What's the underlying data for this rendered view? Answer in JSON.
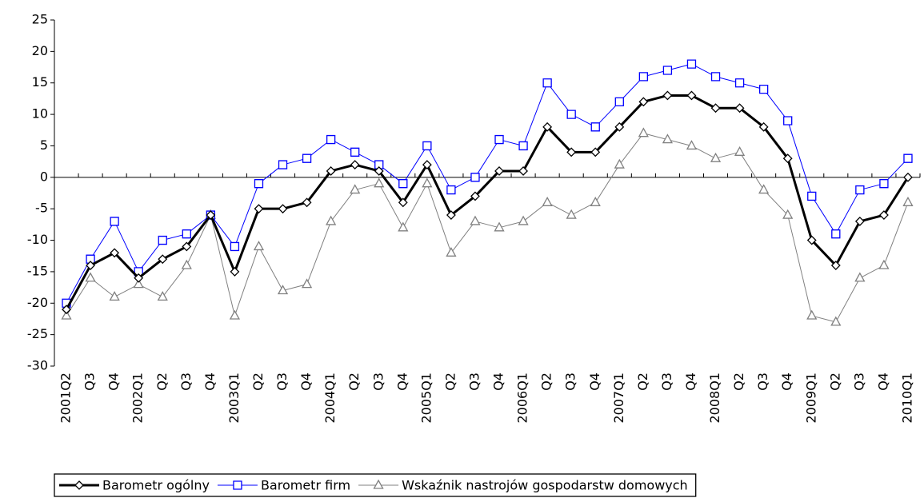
{
  "chart_data": {
    "type": "line",
    "categories": [
      "2001Q2",
      "Q3",
      "Q4",
      "2002Q1",
      "Q2",
      "Q3",
      "Q4",
      "2003Q1",
      "Q2",
      "Q3",
      "Q4",
      "2004Q1",
      "Q2",
      "Q3",
      "Q4",
      "2005Q1",
      "Q2",
      "Q3",
      "Q4",
      "2006Q1",
      "Q2",
      "Q3",
      "Q4",
      "2007Q1",
      "Q2",
      "Q3",
      "Q4",
      "2008Q1",
      "Q2",
      "Q3",
      "Q4",
      "2009Q1",
      "Q2",
      "Q3",
      "Q4",
      "2010Q1"
    ],
    "series": [
      {
        "name": "Barometr ogólny",
        "color": "#000000",
        "marker": "diamond",
        "line_width": 3,
        "values": [
          -21,
          -14,
          -12,
          -16,
          -13,
          -11,
          -6,
          -15,
          -5,
          -5,
          -4,
          1,
          2,
          1,
          -4,
          2,
          -6,
          -3,
          1,
          1,
          8,
          4,
          4,
          8,
          12,
          13,
          13,
          11,
          11,
          8,
          3,
          -10,
          -14,
          -7,
          -6,
          0
        ]
      },
      {
        "name": "Barometr firm",
        "color": "#0000ff",
        "marker": "square",
        "line_width": 1,
        "values": [
          -20,
          -13,
          -7,
          -15,
          -10,
          -9,
          -6,
          -11,
          -1,
          2,
          3,
          6,
          4,
          2,
          -1,
          5,
          -2,
          0,
          6,
          5,
          15,
          10,
          8,
          12,
          16,
          17,
          18,
          16,
          15,
          14,
          9,
          -3,
          -9,
          -2,
          -1,
          3
        ]
      },
      {
        "name": "Wskaźnik nastrojów gospodarstw domowych",
        "color": "#808080",
        "marker": "triangle",
        "line_width": 1,
        "values": [
          -22,
          -16,
          -19,
          -17,
          -19,
          -14,
          -6,
          -22,
          -11,
          -18,
          -17,
          -7,
          -2,
          -1,
          -8,
          -1,
          -12,
          -7,
          -8,
          -7,
          -4,
          -6,
          -4,
          2,
          7,
          6,
          5,
          3,
          4,
          -2,
          -6,
          -22,
          -23,
          -16,
          -14,
          -4
        ]
      }
    ],
    "ylim": [
      -30,
      25
    ],
    "yticks": [
      -30,
      -25,
      -20,
      -15,
      -10,
      -5,
      0,
      5,
      10,
      15,
      20,
      25
    ],
    "grid": false,
    "legend": "bottom"
  }
}
